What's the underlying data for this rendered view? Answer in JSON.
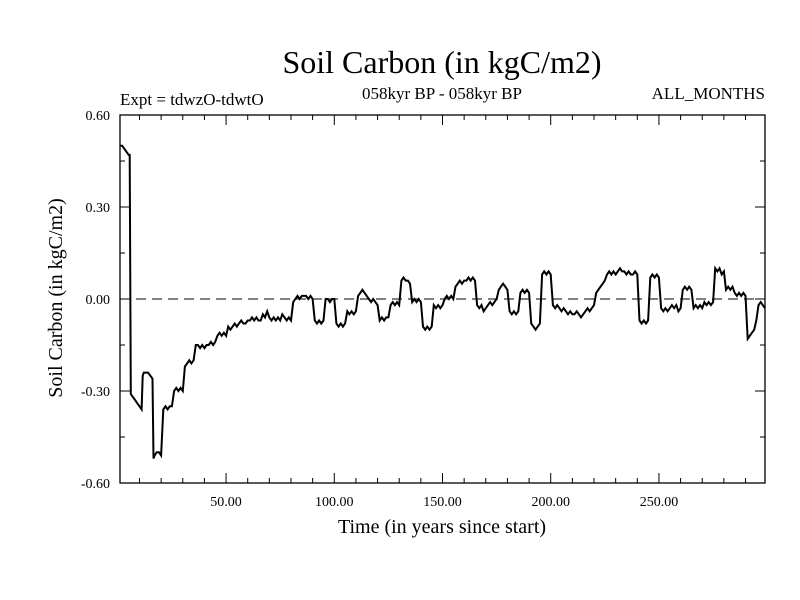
{
  "chart_data": {
    "type": "line",
    "title": "Soil Carbon (in kgC/m2)",
    "subtitle_left": "Expt = tdwzO-tdwtO",
    "subtitle_center": "058kyr BP - 058kyr BP",
    "subtitle_right": "ALL_MONTHS",
    "xlabel": "Time (in years since start)",
    "ylabel": "Soil Carbon (in kgC/m2)",
    "xlim": [
      1,
      299
    ],
    "ylim": [
      -0.6,
      0.6
    ],
    "x_ticks": [
      50,
      100,
      150,
      200,
      250
    ],
    "x_tick_labels": [
      "50.00",
      "100.00",
      "150.00",
      "200.00",
      "250.00"
    ],
    "y_ticks": [
      -0.6,
      -0.3,
      0.0,
      0.3,
      0.6
    ],
    "y_tick_labels": [
      "-0.60",
      "-0.30",
      "0.00",
      "0.30",
      "0.60"
    ],
    "zero_line": 0.0,
    "series": [
      {
        "points": [
          [
            1,
            0.5
          ],
          [
            2,
            0.5
          ],
          [
            3,
            0.49
          ],
          [
            4,
            0.48
          ],
          [
            5,
            0.47
          ],
          [
            5.5,
            0.47
          ],
          [
            6,
            -0.31
          ],
          [
            7,
            -0.32
          ],
          [
            8,
            -0.33
          ],
          [
            9,
            -0.34
          ],
          [
            10,
            -0.35
          ],
          [
            11,
            -0.36
          ],
          [
            11.5,
            -0.25
          ],
          [
            12,
            -0.24
          ],
          [
            14,
            -0.24
          ],
          [
            15,
            -0.25
          ],
          [
            16,
            -0.26
          ],
          [
            16.5,
            -0.52
          ],
          [
            17,
            -0.51
          ],
          [
            18,
            -0.5
          ],
          [
            19,
            -0.5
          ],
          [
            20,
            -0.51
          ],
          [
            21,
            -0.36
          ],
          [
            22,
            -0.35
          ],
          [
            23,
            -0.36
          ],
          [
            24,
            -0.35
          ],
          [
            25,
            -0.35
          ],
          [
            26,
            -0.3
          ],
          [
            27,
            -0.29
          ],
          [
            28,
            -0.3
          ],
          [
            29,
            -0.29
          ],
          [
            30,
            -0.3
          ],
          [
            31,
            -0.22
          ],
          [
            32,
            -0.21
          ],
          [
            33,
            -0.2
          ],
          [
            34,
            -0.21
          ],
          [
            35,
            -0.2
          ],
          [
            36,
            -0.15
          ],
          [
            37,
            -0.15
          ],
          [
            38,
            -0.16
          ],
          [
            39,
            -0.15
          ],
          [
            40,
            -0.16
          ],
          [
            41,
            -0.15
          ],
          [
            42,
            -0.15
          ],
          [
            43,
            -0.14
          ],
          [
            44,
            -0.15
          ],
          [
            45,
            -0.14
          ],
          [
            46,
            -0.12
          ],
          [
            47,
            -0.11
          ],
          [
            48,
            -0.12
          ],
          [
            49,
            -0.11
          ],
          [
            50,
            -0.12
          ],
          [
            51,
            -0.09
          ],
          [
            52,
            -0.1
          ],
          [
            53,
            -0.09
          ],
          [
            54,
            -0.08
          ],
          [
            55,
            -0.09
          ],
          [
            56,
            -0.08
          ],
          [
            57,
            -0.07
          ],
          [
            58,
            -0.08
          ],
          [
            59,
            -0.08
          ],
          [
            60,
            -0.07
          ],
          [
            61,
            -0.07
          ],
          [
            62,
            -0.06
          ],
          [
            63,
            -0.07
          ],
          [
            64,
            -0.06
          ],
          [
            65,
            -0.07
          ],
          [
            66,
            -0.07
          ],
          [
            67,
            -0.05
          ],
          [
            68,
            -0.06
          ],
          [
            69,
            -0.04
          ],
          [
            70,
            -0.06
          ],
          [
            71,
            -0.07
          ],
          [
            72,
            -0.06
          ],
          [
            73,
            -0.07
          ],
          [
            74,
            -0.06
          ],
          [
            75,
            -0.07
          ],
          [
            76,
            -0.05
          ],
          [
            77,
            -0.06
          ],
          [
            78,
            -0.07
          ],
          [
            79,
            -0.06
          ],
          [
            80,
            -0.07
          ],
          [
            81,
            -0.01
          ],
          [
            82,
            0.0
          ],
          [
            83,
            0.01
          ],
          [
            84,
            0.0
          ],
          [
            85,
            0.01
          ],
          [
            86,
            0.01
          ],
          [
            87,
            0.01
          ],
          [
            88,
            0.0
          ],
          [
            89,
            0.01
          ],
          [
            90,
            0.0
          ],
          [
            91,
            -0.07
          ],
          [
            92,
            -0.08
          ],
          [
            93,
            -0.07
          ],
          [
            94,
            -0.08
          ],
          [
            95,
            -0.07
          ],
          [
            96,
            0.0
          ],
          [
            97,
            0.0
          ],
          [
            98,
            -0.01
          ],
          [
            99,
            0.0
          ],
          [
            100,
            0.0
          ],
          [
            101,
            -0.08
          ],
          [
            102,
            -0.09
          ],
          [
            103,
            -0.08
          ],
          [
            104,
            -0.09
          ],
          [
            105,
            -0.08
          ],
          [
            106,
            -0.04
          ],
          [
            107,
            -0.05
          ],
          [
            108,
            -0.04
          ],
          [
            109,
            -0.05
          ],
          [
            110,
            -0.04
          ],
          [
            111,
            0.01
          ],
          [
            112,
            0.02
          ],
          [
            113,
            0.03
          ],
          [
            114,
            0.02
          ],
          [
            115,
            0.01
          ],
          [
            116,
            0.0
          ],
          [
            117,
            -0.01
          ],
          [
            118,
            0.0
          ],
          [
            119,
            -0.01
          ],
          [
            120,
            -0.02
          ],
          [
            121,
            -0.07
          ],
          [
            122,
            -0.06
          ],
          [
            123,
            -0.07
          ],
          [
            124,
            -0.06
          ],
          [
            125,
            -0.06
          ],
          [
            126,
            -0.02
          ],
          [
            127,
            -0.01
          ],
          [
            128,
            -0.02
          ],
          [
            129,
            -0.01
          ],
          [
            130,
            -0.02
          ],
          [
            131,
            0.06
          ],
          [
            132,
            0.07
          ],
          [
            133,
            0.06
          ],
          [
            134,
            0.06
          ],
          [
            135,
            0.05
          ],
          [
            136,
            -0.01
          ],
          [
            137,
            0.0
          ],
          [
            138,
            -0.01
          ],
          [
            139,
            0.0
          ],
          [
            140,
            -0.01
          ],
          [
            141,
            -0.09
          ],
          [
            142,
            -0.1
          ],
          [
            143,
            -0.09
          ],
          [
            144,
            -0.1
          ],
          [
            145,
            -0.09
          ],
          [
            146,
            -0.02
          ],
          [
            147,
            -0.03
          ],
          [
            148,
            -0.02
          ],
          [
            149,
            -0.03
          ],
          [
            150,
            -0.02
          ],
          [
            151,
            0.0
          ],
          [
            152,
            0.01
          ],
          [
            153,
            0.0
          ],
          [
            154,
            0.01
          ],
          [
            155,
            0.0
          ],
          [
            156,
            0.04
          ],
          [
            157,
            0.05
          ],
          [
            158,
            0.06
          ],
          [
            159,
            0.05
          ],
          [
            160,
            0.06
          ],
          [
            161,
            0.06
          ],
          [
            162,
            0.07
          ],
          [
            163,
            0.06
          ],
          [
            164,
            0.07
          ],
          [
            165,
            0.06
          ],
          [
            166,
            -0.02
          ],
          [
            167,
            -0.03
          ],
          [
            168,
            -0.02
          ],
          [
            169,
            -0.04
          ],
          [
            170,
            -0.03
          ],
          [
            171,
            -0.02
          ],
          [
            172,
            -0.01
          ],
          [
            173,
            -0.02
          ],
          [
            174,
            -0.01
          ],
          [
            175,
            0.0
          ],
          [
            176,
            0.03
          ],
          [
            177,
            0.04
          ],
          [
            178,
            0.05
          ],
          [
            179,
            0.04
          ],
          [
            180,
            0.03
          ],
          [
            181,
            -0.04
          ],
          [
            182,
            -0.05
          ],
          [
            183,
            -0.04
          ],
          [
            184,
            -0.05
          ],
          [
            185,
            -0.04
          ],
          [
            186,
            0.02
          ],
          [
            187,
            0.03
          ],
          [
            188,
            0.02
          ],
          [
            189,
            0.03
          ],
          [
            190,
            0.02
          ],
          [
            191,
            -0.08
          ],
          [
            192,
            -0.09
          ],
          [
            193,
            -0.1
          ],
          [
            194,
            -0.09
          ],
          [
            195,
            -0.08
          ],
          [
            196,
            0.08
          ],
          [
            197,
            0.09
          ],
          [
            198,
            0.08
          ],
          [
            199,
            0.09
          ],
          [
            200,
            0.08
          ],
          [
            201,
            -0.02
          ],
          [
            202,
            -0.03
          ],
          [
            203,
            -0.02
          ],
          [
            204,
            -0.03
          ],
          [
            205,
            -0.04
          ],
          [
            206,
            -0.03
          ],
          [
            207,
            -0.04
          ],
          [
            208,
            -0.05
          ],
          [
            209,
            -0.04
          ],
          [
            210,
            -0.05
          ],
          [
            211,
            -0.05
          ],
          [
            212,
            -0.04
          ],
          [
            213,
            -0.05
          ],
          [
            214,
            -0.06
          ],
          [
            215,
            -0.05
          ],
          [
            216,
            -0.04
          ],
          [
            217,
            -0.03
          ],
          [
            218,
            -0.04
          ],
          [
            219,
            -0.03
          ],
          [
            220,
            -0.02
          ],
          [
            221,
            0.02
          ],
          [
            222,
            0.03
          ],
          [
            223,
            0.04
          ],
          [
            224,
            0.05
          ],
          [
            225,
            0.06
          ],
          [
            226,
            0.08
          ],
          [
            227,
            0.09
          ],
          [
            228,
            0.08
          ],
          [
            229,
            0.09
          ],
          [
            230,
            0.08
          ],
          [
            231,
            0.09
          ],
          [
            232,
            0.1
          ],
          [
            233,
            0.09
          ],
          [
            234,
            0.09
          ],
          [
            235,
            0.08
          ],
          [
            236,
            0.09
          ],
          [
            237,
            0.08
          ],
          [
            238,
            0.08
          ],
          [
            239,
            0.09
          ],
          [
            240,
            0.08
          ],
          [
            241,
            -0.07
          ],
          [
            242,
            -0.08
          ],
          [
            243,
            -0.07
          ],
          [
            244,
            -0.08
          ],
          [
            245,
            -0.07
          ],
          [
            246,
            0.07
          ],
          [
            247,
            0.08
          ],
          [
            248,
            0.07
          ],
          [
            249,
            0.08
          ],
          [
            250,
            0.07
          ],
          [
            251,
            -0.03
          ],
          [
            252,
            -0.04
          ],
          [
            253,
            -0.03
          ],
          [
            254,
            -0.04
          ],
          [
            255,
            -0.03
          ],
          [
            256,
            -0.02
          ],
          [
            257,
            -0.03
          ],
          [
            258,
            -0.02
          ],
          [
            259,
            -0.04
          ],
          [
            260,
            -0.03
          ],
          [
            261,
            0.03
          ],
          [
            262,
            0.04
          ],
          [
            263,
            0.03
          ],
          [
            264,
            0.04
          ],
          [
            265,
            0.03
          ],
          [
            266,
            -0.03
          ],
          [
            267,
            -0.02
          ],
          [
            268,
            -0.03
          ],
          [
            269,
            -0.02
          ],
          [
            270,
            -0.03
          ],
          [
            271,
            -0.01
          ],
          [
            272,
            -0.02
          ],
          [
            273,
            -0.01
          ],
          [
            274,
            -0.02
          ],
          [
            275,
            -0.01
          ],
          [
            276,
            0.1
          ],
          [
            277,
            0.09
          ],
          [
            278,
            0.1
          ],
          [
            279,
            0.08
          ],
          [
            280,
            0.09
          ],
          [
            281,
            0.03
          ],
          [
            282,
            0.04
          ],
          [
            283,
            0.03
          ],
          [
            284,
            0.04
          ],
          [
            285,
            0.02
          ],
          [
            286,
            0.01
          ],
          [
            287,
            0.02
          ],
          [
            288,
            0.01
          ],
          [
            289,
            0.02
          ],
          [
            290,
            0.01
          ],
          [
            291,
            -0.13
          ],
          [
            292,
            -0.12
          ],
          [
            293,
            -0.11
          ],
          [
            294,
            -0.1
          ],
          [
            295,
            -0.07
          ],
          [
            296,
            -0.02
          ],
          [
            297,
            -0.01
          ],
          [
            298,
            -0.02
          ],
          [
            299,
            -0.03
          ]
        ]
      }
    ]
  }
}
